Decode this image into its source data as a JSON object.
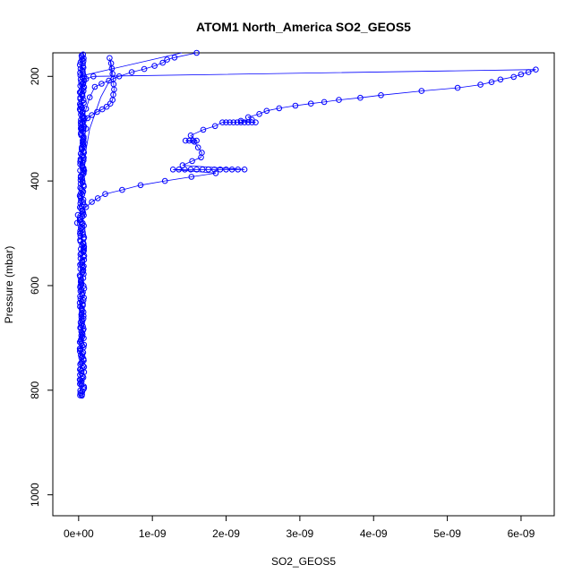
{
  "chart_data": {
    "type": "scatter",
    "title": "ATOM1 North_America SO2_GEOS5",
    "xlabel": "SO2_GEOS5",
    "ylabel": "Pressure (mbar)",
    "xlim": [
      -3.5e-10,
      6.45e-09
    ],
    "ylim": [
      1040,
      155
    ],
    "y_reversed": true,
    "x_ticks": [
      0,
      1e-09,
      2e-09,
      3e-09,
      4e-09,
      5e-09,
      6e-09
    ],
    "x_tick_labels": [
      "0e+00",
      "1e-09",
      "2e-09",
      "3e-09",
      "4e-09",
      "5e-09",
      "6e-09"
    ],
    "y_ticks": [
      200,
      400,
      600,
      800,
      1000
    ],
    "y_tick_labels": [
      "200",
      "400",
      "600",
      "800",
      "1000"
    ],
    "grid": false,
    "legend": "none",
    "colors": {
      "series": "#0000ff",
      "axes": "#000000"
    },
    "marker": "open-circle",
    "series": [
      {
        "style": "points-and-lines",
        "points": [
          [
            2e-11,
            810
          ],
          [
            1.5e-11,
            780
          ],
          [
            2.5e-11,
            760
          ],
          [
            2e-11,
            720
          ],
          [
            3e-11,
            680
          ],
          [
            2e-11,
            640
          ],
          [
            2.5e-11,
            600
          ],
          [
            2e-11,
            560
          ],
          [
            3e-11,
            530
          ],
          [
            6e-11,
            520
          ],
          [
            2e-11,
            500
          ],
          [
            -2e-11,
            480
          ],
          [
            -1e-11,
            465
          ],
          [
            1e-10,
            450
          ],
          [
            1.8e-10,
            440
          ],
          [
            2.6e-10,
            433
          ],
          [
            3.6e-10,
            425
          ],
          [
            5.9e-10,
            417
          ],
          [
            8.4e-10,
            408
          ],
          [
            1.17e-09,
            400
          ],
          [
            1.53e-09,
            392
          ],
          [
            1.86e-09,
            385
          ],
          [
            1.28e-09,
            378
          ],
          [
            1.36e-09,
            378
          ],
          [
            1.44e-09,
            378
          ],
          [
            1.52e-09,
            378
          ],
          [
            1.6e-09,
            378
          ],
          [
            1.68e-09,
            378
          ],
          [
            1.76e-09,
            378
          ],
          [
            1.84e-09,
            378
          ],
          [
            1.92e-09,
            378
          ],
          [
            2e-09,
            378
          ],
          [
            2.08e-09,
            378
          ],
          [
            2.16e-09,
            378
          ],
          [
            2.25e-09,
            378
          ],
          [
            1.41e-09,
            370
          ],
          [
            1.54e-09,
            362
          ],
          [
            1.66e-09,
            355
          ],
          [
            1.67e-09,
            346
          ],
          [
            1.62e-09,
            336
          ],
          [
            1.57e-09,
            325
          ],
          [
            1.45e-09,
            323
          ],
          [
            1.5e-09,
            323
          ],
          [
            1.55e-09,
            323
          ],
          [
            1.6e-09,
            323
          ],
          [
            1.52e-09,
            313
          ],
          [
            1.69e-09,
            302
          ],
          [
            1.85e-09,
            295
          ],
          [
            1.95e-09,
            288
          ],
          [
            2e-09,
            288
          ],
          [
            2.05e-09,
            288
          ],
          [
            2.1e-09,
            288
          ],
          [
            2.15e-09,
            288
          ],
          [
            2.2e-09,
            288
          ],
          [
            2.25e-09,
            288
          ],
          [
            2.3e-09,
            288
          ],
          [
            2.35e-09,
            288
          ],
          [
            2.4e-09,
            288
          ],
          [
            2.2e-09,
            285
          ],
          [
            2.35e-09,
            283
          ],
          [
            2.3e-09,
            278
          ],
          [
            2.45e-09,
            272
          ],
          [
            2.55e-09,
            266
          ],
          [
            2.72e-09,
            261
          ],
          [
            2.94e-09,
            256
          ],
          [
            3.15e-09,
            252
          ],
          [
            3.33e-09,
            249
          ],
          [
            3.53e-09,
            245
          ],
          [
            3.82e-09,
            241
          ],
          [
            4.1e-09,
            236
          ],
          [
            4.65e-09,
            228
          ],
          [
            5.14e-09,
            222
          ],
          [
            5.45e-09,
            216
          ],
          [
            5.6e-09,
            211
          ],
          [
            5.72e-09,
            206
          ],
          [
            5.9e-09,
            201
          ],
          [
            6e-09,
            196
          ],
          [
            6.1e-09,
            192
          ],
          [
            6.2e-09,
            187
          ],
          [
            2e-10,
            200
          ],
          [
            1e-10,
            205
          ],
          [
            6e-11,
            215
          ],
          [
            3e-11,
            230
          ],
          [
            4e-11,
            260
          ],
          [
            8e-11,
            280
          ],
          [
            1e-10,
            300
          ],
          [
            6e-11,
            330
          ],
          [
            3e-11,
            360
          ],
          [
            2e-11,
            380
          ]
        ]
      },
      {
        "style": "points-and-lines",
        "points": [
          [
            4.2e-10,
            165
          ],
          [
            4.4e-10,
            175
          ],
          [
            4.5e-10,
            185
          ],
          [
            4.6e-10,
            195
          ],
          [
            4.7e-10,
            205
          ],
          [
            4.75e-10,
            215
          ],
          [
            4.8e-10,
            225
          ],
          [
            4.7e-10,
            235
          ],
          [
            4.6e-10,
            245
          ],
          [
            4.3e-10,
            252
          ],
          [
            3.8e-10,
            258
          ],
          [
            3.2e-10,
            263
          ],
          [
            2.5e-10,
            268
          ],
          [
            1.8e-10,
            274
          ],
          [
            1.2e-10,
            280
          ],
          [
            5e-11,
            288
          ],
          [
            3e-11,
            300
          ]
        ]
      },
      {
        "style": "points-and-lines",
        "points": [
          [
            4e-11,
            300
          ],
          [
            1e-10,
            262
          ],
          [
            1.5e-10,
            240
          ],
          [
            2.2e-10,
            220
          ],
          [
            3.1e-10,
            214
          ],
          [
            4.1e-10,
            208
          ],
          [
            5.5e-10,
            200
          ],
          [
            7.2e-10,
            192
          ],
          [
            8.9e-10,
            186
          ],
          [
            1.03e-09,
            180
          ],
          [
            1.14e-09,
            174
          ],
          [
            1.2e-09,
            168
          ],
          [
            1.3e-09,
            164
          ],
          [
            1.6e-09,
            155
          ]
        ]
      },
      {
        "style": "lines-only",
        "points": [
          [
            3e-11,
            445
          ],
          [
            6e-11,
            400
          ],
          [
            1e-10,
            340
          ],
          [
            1.5e-10,
            300
          ],
          [
            3e-10,
            240
          ],
          [
            4.5e-10,
            200
          ],
          [
            4.3e-10,
            170
          ]
        ]
      },
      {
        "style": "lines-only",
        "points": [
          [
            1e-11,
            200
          ],
          [
            1.4e-09,
            155
          ]
        ]
      }
    ]
  }
}
